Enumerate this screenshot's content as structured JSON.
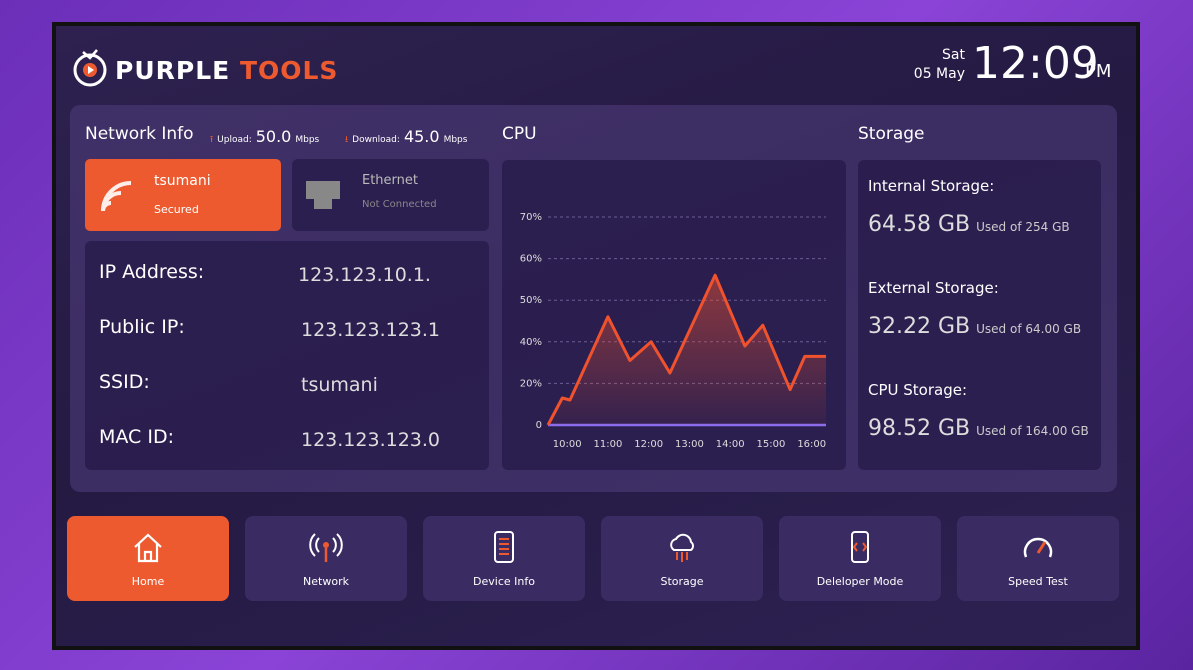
{
  "header": {
    "brand_1": "PURPLE",
    "brand_2": "TOOLS",
    "day": "Sat",
    "date": "05 May",
    "time": "12:09",
    "ampm": "PM"
  },
  "network": {
    "title": "Network Info",
    "upload_label": "Upload:",
    "upload_value": "50.0",
    "upload_unit": "Mbps",
    "download_label": "Download:",
    "download_value": "45.0",
    "download_unit": "Mbps",
    "wifi": {
      "name": "tsumani",
      "status": "Secured"
    },
    "ethernet": {
      "name": "Ethernet",
      "status": "Not Connected"
    },
    "rows": [
      [
        "IP Address:",
        "123.123.10.1."
      ],
      [
        "Public IP:",
        "123.123.123.1"
      ],
      [
        "SSID:",
        "tsumani"
      ],
      [
        "MAC ID:",
        "123.123.123.0"
      ]
    ]
  },
  "cpu": {
    "title": "CPU",
    "chart_data": {
      "type": "line",
      "x": [
        9.53,
        9.88,
        10.07,
        11.0,
        11.54,
        12.06,
        12.52,
        13.63,
        14.36,
        14.8,
        15.47,
        15.83,
        16.35
      ],
      "values": [
        0,
        13,
        12,
        46,
        31,
        40,
        25,
        56,
        38,
        44,
        17,
        33,
        33
      ],
      "color": "#f0522e",
      "xlim": [
        9.53,
        16.35
      ],
      "xticks": [
        {
          "value": 10,
          "label": "10:00"
        },
        {
          "value": 11,
          "label": "11:00"
        },
        {
          "value": 12,
          "label": "12:00"
        },
        {
          "value": 13,
          "label": "13:00"
        },
        {
          "value": 14,
          "label": "14:00"
        },
        {
          "value": 15,
          "label": "15:00"
        },
        {
          "value": 16,
          "label": "16:00"
        }
      ],
      "yticks": [
        0,
        {
          "value": 20,
          "label": "20%"
        },
        {
          "value": 40,
          "label": "40%"
        },
        {
          "value": 50,
          "label": "50%"
        },
        {
          "value": 60,
          "label": "60%"
        },
        {
          "value": 70,
          "label": "70%"
        }
      ],
      "grid": true
    }
  },
  "storage": {
    "title": "Storage",
    "items": [
      {
        "label": "Internal Storage:",
        "used": "64.58 GB",
        "total": "Used of 254 GB"
      },
      {
        "label": "External  Storage:",
        "used": "32.22 GB",
        "total": "Used of 64.00 GB"
      },
      {
        "label": "CPU Storage:",
        "used": "98.52 GB",
        "total": "Used of 164.00 GB"
      }
    ]
  },
  "nav": [
    "Home",
    "Network",
    "Device Info",
    "Storage",
    "Deleloper Mode",
    "Speed Test"
  ]
}
